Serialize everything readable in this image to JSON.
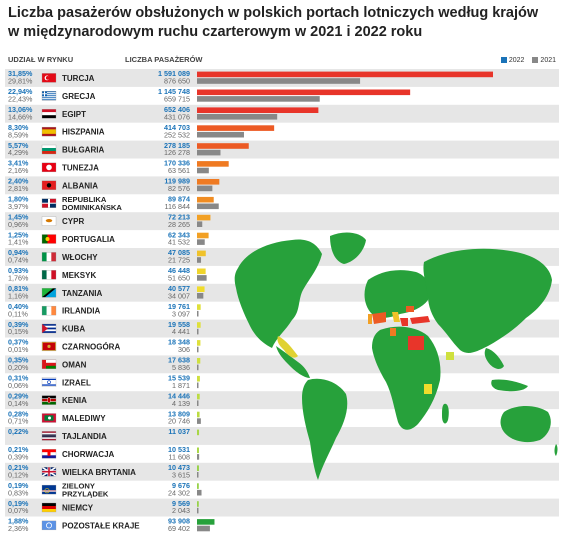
{
  "title_line1": "Liczba pasażerów obsłużonych w polskich portach lotniczych według krajów",
  "title_line2": "w międzynarodowym ruchu czarterowym w 2021 i 2022 roku",
  "col_share": "UDZIAŁ W RYNKU",
  "col_passengers": "LICZBA PASAŻERÓW",
  "colors": {
    "y2022": "#1a73b8",
    "y2021": "#888888",
    "map_green": "#27a13b",
    "stripe": "#e6e6e6"
  },
  "chart_data": {
    "type": "bar",
    "legend": [
      "2022",
      "2021"
    ],
    "legend_position": "top-right",
    "series": [
      {
        "name": "2022"
      },
      {
        "name": "2021"
      }
    ],
    "rows": [
      {
        "country": "TURCJA",
        "share2022": "31,85%",
        "share2021": "29,81%",
        "v2022": 1591089,
        "v2021": 876650,
        "l2022": "1 591 089",
        "l2021": "876 650",
        "bar_color": "#e8352a",
        "flag": "tr"
      },
      {
        "country": "GRECJA",
        "share2022": "22,94%",
        "share2021": "22,43%",
        "v2022": 1145748,
        "v2021": 659715,
        "l2022": "1 145 748",
        "l2021": "659 715",
        "bar_color": "#e8352a",
        "flag": "gr"
      },
      {
        "country": "EGIPT",
        "share2022": "13,06%",
        "share2021": "14,66%",
        "v2022": 652406,
        "v2021": 431076,
        "l2022": "652 406",
        "l2021": "431 076",
        "bar_color": "#e8352a",
        "flag": "eg"
      },
      {
        "country": "HISZPANIA",
        "share2022": "8,30%",
        "share2021": "8,59%",
        "v2022": 414703,
        "v2021": 252532,
        "l2022": "414 703",
        "l2021": "252 532",
        "bar_color": "#ec5a24",
        "flag": "es"
      },
      {
        "country": "BUŁGARIA",
        "share2022": "5,57%",
        "share2021": "4,29%",
        "v2022": 278185,
        "v2021": 126278,
        "l2022": "278 185",
        "l2021": "126 278",
        "bar_color": "#ec5a24",
        "flag": "bg"
      },
      {
        "country": "TUNEZJA",
        "share2022": "3,41%",
        "share2021": "2,16%",
        "v2022": 170336,
        "v2021": 63561,
        "l2022": "170 336",
        "l2021": "63 561",
        "bar_color": "#ef7a22",
        "flag": "tn"
      },
      {
        "country": "ALBANIA",
        "share2022": "2,40%",
        "share2021": "2,81%",
        "v2022": 119989,
        "v2021": 82576,
        "l2022": "119 989",
        "l2021": "82 576",
        "bar_color": "#ef7a22",
        "flag": "al"
      },
      {
        "country": "REPUBLIKA DOMINIKAŃSKA",
        "share2022": "1,80%",
        "share2021": "3,97%",
        "v2022": 89874,
        "v2021": 116844,
        "l2022": "89 874",
        "l2021": "116 844",
        "bar_color": "#f08c22",
        "flag": "do"
      },
      {
        "country": "CYPR",
        "share2022": "1,45%",
        "share2021": "0,96%",
        "v2022": 72213,
        "v2021": 28265,
        "l2022": "72 213",
        "l2021": "28 265",
        "bar_color": "#f2a024",
        "flag": "cy"
      },
      {
        "country": "PORTUGALIA",
        "share2022": "1,25%",
        "share2021": "1,41%",
        "v2022": 62343,
        "v2021": 41532,
        "l2022": "62 343",
        "l2021": "41 532",
        "bar_color": "#f2a024",
        "flag": "pt"
      },
      {
        "country": "WŁOCHY",
        "share2022": "0,94%",
        "share2021": "0,74%",
        "v2022": 47085,
        "v2021": 21725,
        "l2022": "47 085",
        "l2021": "21 725",
        "bar_color": "#f0c22a",
        "flag": "it"
      },
      {
        "country": "MEKSYK",
        "share2022": "0,93%",
        "share2021": "1,76%",
        "v2022": 46448,
        "v2021": 51650,
        "l2022": "46 448",
        "l2021": "51 650",
        "bar_color": "#f0d52c",
        "flag": "mx"
      },
      {
        "country": "TANZANIA",
        "share2022": "0,81%",
        "share2021": "1,16%",
        "v2022": 40577,
        "v2021": 34007,
        "l2022": "40 577",
        "l2021": "34 007",
        "bar_color": "#f0dc2c",
        "flag": "tz"
      },
      {
        "country": "IRLANDIA",
        "share2022": "0,40%",
        "share2021": "0,11%",
        "v2022": 19761,
        "v2021": 3097,
        "l2022": "19 761",
        "l2021": "3 097",
        "bar_color": "#dfe03a",
        "flag": "ie"
      },
      {
        "country": "KUBA",
        "share2022": "0,39%",
        "share2021": "0,15%",
        "v2022": 19558,
        "v2021": 4441,
        "l2022": "19 558",
        "l2021": "4 441",
        "bar_color": "#dfe03a",
        "flag": "cu"
      },
      {
        "country": "CZARNOGÓRA",
        "share2022": "0,37%",
        "share2021": "0,01%",
        "v2022": 18348,
        "v2021": 306,
        "l2022": "18 348",
        "l2021": "306",
        "bar_color": "#dfe03a",
        "flag": "me"
      },
      {
        "country": "OMAN",
        "share2022": "0,35%",
        "share2021": "0,20%",
        "v2022": 17638,
        "v2021": 5836,
        "l2022": "17 638",
        "l2021": "5 836",
        "bar_color": "#cfe03e",
        "flag": "om"
      },
      {
        "country": "IZRAEL",
        "share2022": "0,31%",
        "share2021": "0,06%",
        "v2022": 15539,
        "v2021": 1871,
        "l2022": "15 539",
        "l2021": "1 871",
        "bar_color": "#cfe03e",
        "flag": "il"
      },
      {
        "country": "KENIA",
        "share2022": "0,29%",
        "share2021": "0,14%",
        "v2022": 14446,
        "v2021": 4139,
        "l2022": "14 446",
        "l2021": "4 139",
        "bar_color": "#bcdc42",
        "flag": "ke"
      },
      {
        "country": "MALEDIWY",
        "share2022": "0,28%",
        "share2021": "0,71%",
        "v2022": 13809,
        "v2021": 20746,
        "l2022": "13 809",
        "l2021": "20 746",
        "bar_color": "#bcdc42",
        "flag": "mv"
      },
      {
        "country": "TAJLANDIA",
        "share2022": "0,22%",
        "share2021": "",
        "v2022": 11037,
        "v2021": null,
        "l2022": "11 037",
        "l2021": "",
        "bar_color": "#a8d646",
        "flag": "th"
      },
      {
        "country": "CHORWACJA",
        "share2022": "0,21%",
        "share2021": "0,39%",
        "v2022": 10531,
        "v2021": 11608,
        "l2022": "10 531",
        "l2021": "11 608",
        "bar_color": "#a8d646",
        "flag": "hr"
      },
      {
        "country": "WIELKA BRYTANIA",
        "share2022": "0,21%",
        "share2021": "0,12%",
        "v2022": 10473,
        "v2021": 3615,
        "l2022": "10 473",
        "l2021": "3 615",
        "bar_color": "#98d24a",
        "flag": "gb"
      },
      {
        "country": "ZIELONY PRZYLĄDEK",
        "share2022": "0,19%",
        "share2021": "0,83%",
        "v2022": 9676,
        "v2021": 24302,
        "l2022": "9 676",
        "l2021": "24 302",
        "bar_color": "#98d24a",
        "flag": "cv"
      },
      {
        "country": "NIEMCY",
        "share2022": "0,19%",
        "share2021": "0,07%",
        "v2022": 9569,
        "v2021": 2043,
        "l2022": "9 569",
        "l2021": "2 043",
        "bar_color": "#98d24a",
        "flag": "de"
      },
      {
        "country": "POZOSTAŁE KRAJE",
        "share2022": "1,88%",
        "share2021": "2,36%",
        "v2022": 93908,
        "v2021": 69402,
        "l2022": "93 908",
        "l2021": "69 402",
        "bar_color": "#27a13b",
        "flag": "un"
      }
    ]
  }
}
